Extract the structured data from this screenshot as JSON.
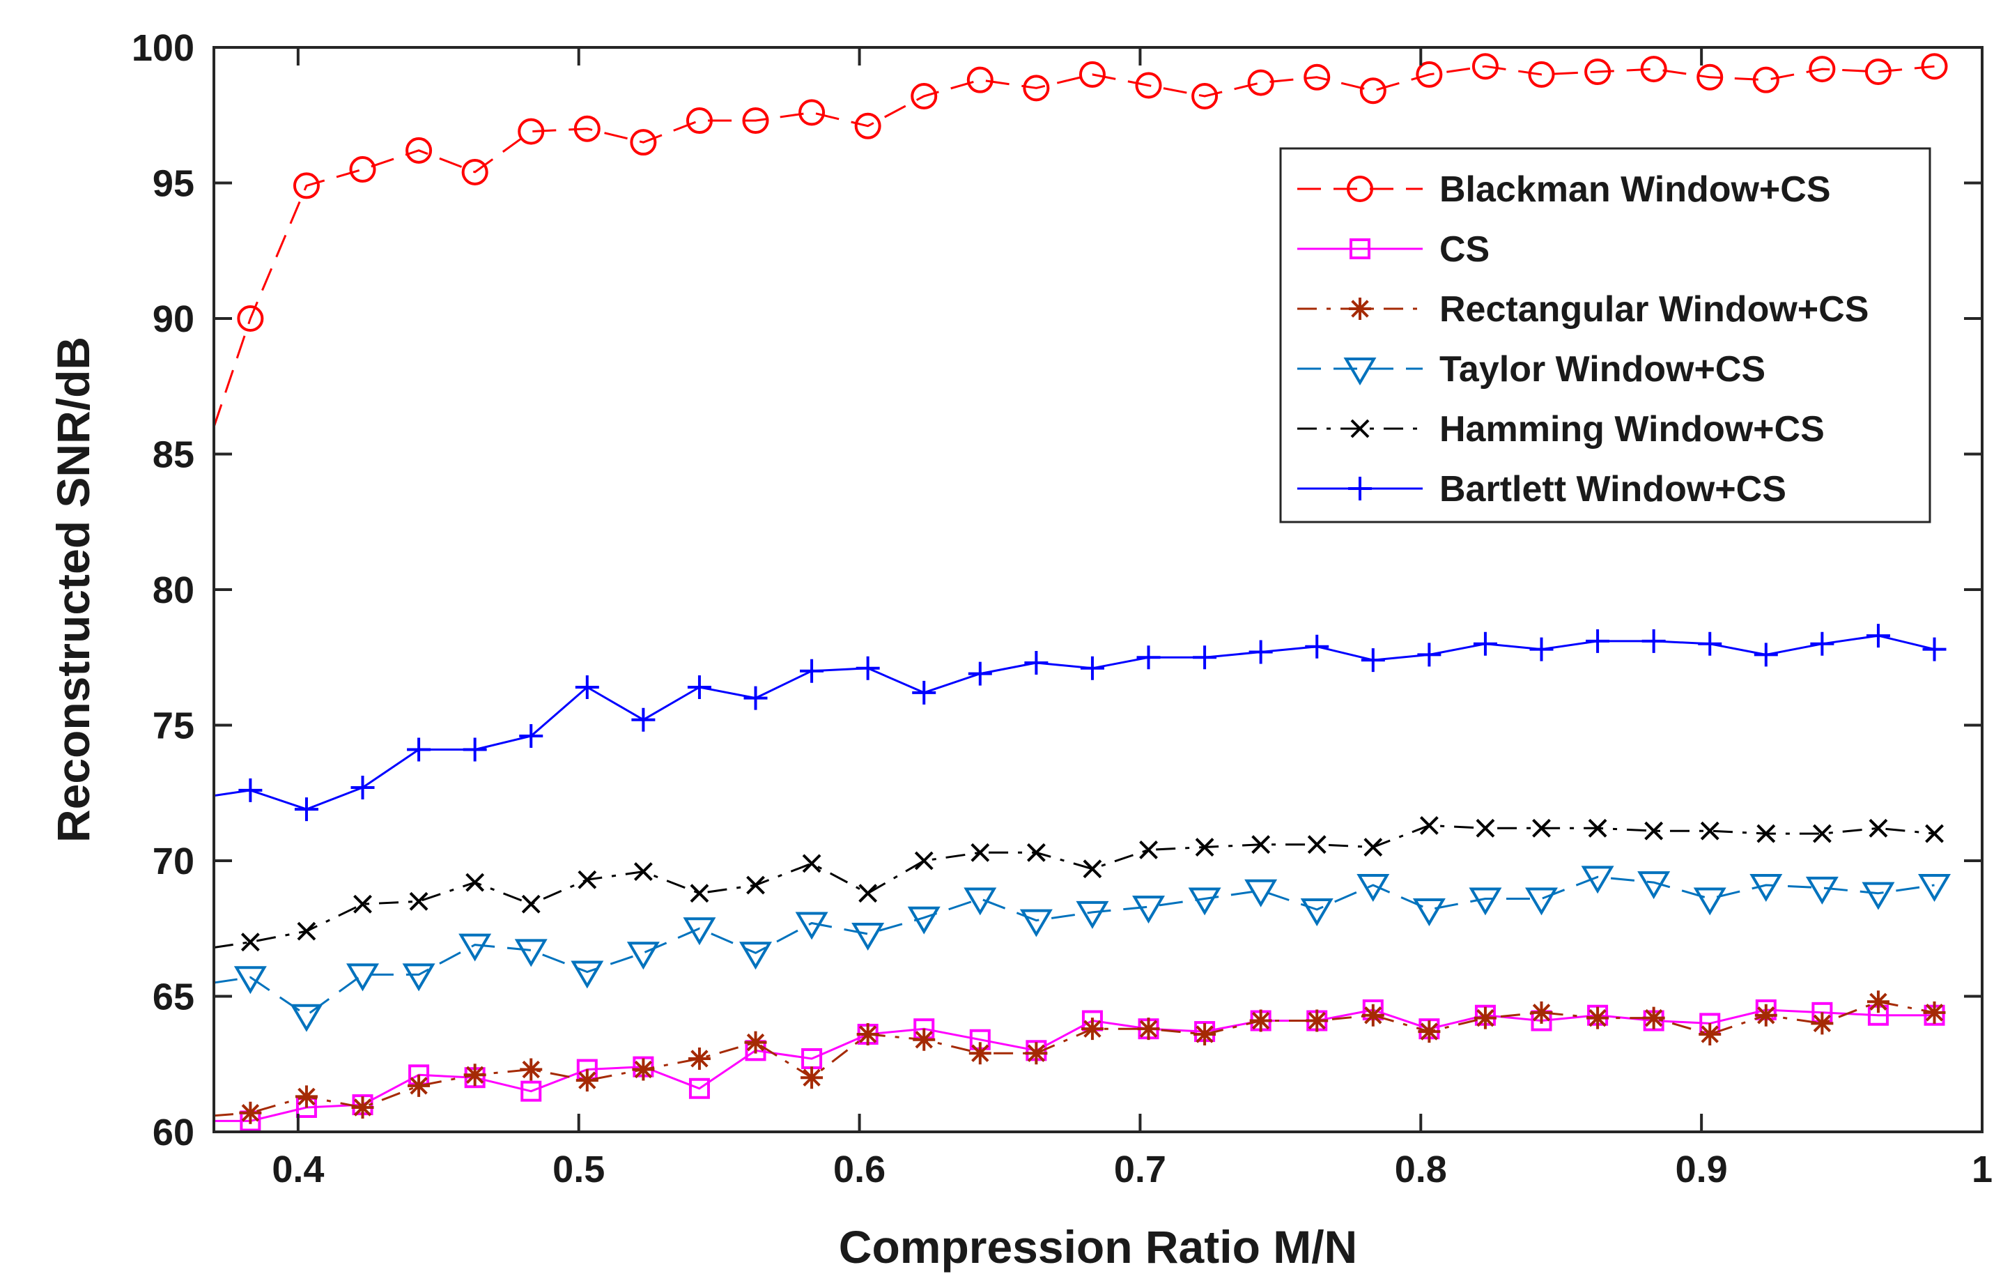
{
  "chart_data": {
    "type": "line",
    "title": "",
    "xlabel": "Compression Ratio M/N",
    "ylabel": "Reconstructed  SNR/dB",
    "xlim": [
      0.37,
      1.0
    ],
    "ylim": [
      60,
      100
    ],
    "xticks": [
      0.4,
      0.5,
      0.6,
      0.7,
      0.8,
      0.9,
      1
    ],
    "xtick_labels": [
      "0.4",
      "0.5",
      "0.6",
      "0.7",
      "0.8",
      "0.9",
      "1"
    ],
    "yticks": [
      60,
      65,
      70,
      75,
      80,
      85,
      90,
      95,
      100
    ],
    "ytick_labels": [
      "60",
      "65",
      "70",
      "75",
      "80",
      "85",
      "90",
      "95",
      "100"
    ],
    "grid": false,
    "legend_position": "top-right",
    "x": [
      0.37,
      0.383,
      0.403,
      0.423,
      0.443,
      0.463,
      0.483,
      0.503,
      0.523,
      0.543,
      0.563,
      0.583,
      0.603,
      0.623,
      0.643,
      0.663,
      0.683,
      0.703,
      0.723,
      0.743,
      0.763,
      0.783,
      0.803,
      0.823,
      0.843,
      0.863,
      0.883,
      0.903,
      0.923,
      0.943,
      0.963,
      0.983
    ],
    "series": [
      {
        "name": "Blackman Window+CS",
        "color": "#ff0000",
        "dash": "dash",
        "marker": "circle",
        "values": [
          86.0,
          90.0,
          94.9,
          95.5,
          96.2,
          95.4,
          96.9,
          97.0,
          96.5,
          97.3,
          97.3,
          97.6,
          97.1,
          98.2,
          98.8,
          98.5,
          99.0,
          98.6,
          98.2,
          98.7,
          98.9,
          98.4,
          99.0,
          99.3,
          99.0,
          99.1,
          99.2,
          98.9,
          98.8,
          99.2,
          99.1,
          99.3
        ]
      },
      {
        "name": "CS",
        "color": "#ff00ff",
        "dash": "solid",
        "marker": "square",
        "values": [
          60.4,
          60.4,
          60.9,
          61.0,
          62.1,
          62.0,
          61.5,
          62.3,
          62.4,
          61.6,
          63.0,
          62.7,
          63.6,
          63.8,
          63.4,
          63.0,
          64.1,
          63.8,
          63.7,
          64.1,
          64.1,
          64.5,
          63.8,
          64.3,
          64.1,
          64.3,
          64.1,
          64.0,
          64.5,
          64.4,
          64.3,
          64.3
        ]
      },
      {
        "name": "Rectangular Window+CS",
        "color": "#a52a05",
        "dash": "dashdot",
        "marker": "asterisk",
        "values": [
          60.6,
          60.7,
          61.3,
          60.9,
          61.7,
          62.1,
          62.3,
          61.9,
          62.3,
          62.7,
          63.3,
          62.0,
          63.6,
          63.4,
          62.9,
          62.9,
          63.8,
          63.8,
          63.6,
          64.1,
          64.1,
          64.3,
          63.7,
          64.2,
          64.4,
          64.2,
          64.2,
          63.6,
          64.3,
          64.0,
          64.8,
          64.4
        ]
      },
      {
        "name": "Taylor Window+CS",
        "color": "#0072bd",
        "dash": "dash",
        "marker": "triangle-down",
        "values": [
          65.5,
          65.7,
          64.3,
          65.8,
          65.8,
          66.9,
          66.7,
          65.9,
          66.6,
          67.5,
          66.6,
          67.7,
          67.3,
          67.9,
          68.6,
          67.8,
          68.1,
          68.3,
          68.6,
          68.9,
          68.2,
          69.1,
          68.2,
          68.6,
          68.6,
          69.4,
          69.2,
          68.6,
          69.1,
          69.0,
          68.8,
          69.1
        ]
      },
      {
        "name": "Hamming Window+CS",
        "color": "#000000",
        "dash": "dashdot",
        "marker": "x",
        "values": [
          66.8,
          67.0,
          67.4,
          68.4,
          68.5,
          69.2,
          68.4,
          69.3,
          69.6,
          68.8,
          69.1,
          69.9,
          68.8,
          70.0,
          70.3,
          70.3,
          69.7,
          70.4,
          70.5,
          70.6,
          70.6,
          70.5,
          71.3,
          71.2,
          71.2,
          71.2,
          71.1,
          71.1,
          71.0,
          71.0,
          71.2,
          71.0
        ]
      },
      {
        "name": "Bartlett Window+CS",
        "color": "#0000ff",
        "dash": "solid",
        "marker": "plus",
        "values": [
          72.4,
          72.6,
          71.9,
          72.7,
          74.1,
          74.1,
          74.6,
          76.4,
          75.2,
          76.4,
          76.0,
          77.0,
          77.1,
          76.2,
          76.9,
          77.3,
          77.1,
          77.5,
          77.5,
          77.7,
          77.9,
          77.4,
          77.6,
          78.0,
          77.8,
          78.1,
          78.1,
          78.0,
          77.6,
          78.0,
          78.3,
          77.8
        ]
      }
    ]
  }
}
